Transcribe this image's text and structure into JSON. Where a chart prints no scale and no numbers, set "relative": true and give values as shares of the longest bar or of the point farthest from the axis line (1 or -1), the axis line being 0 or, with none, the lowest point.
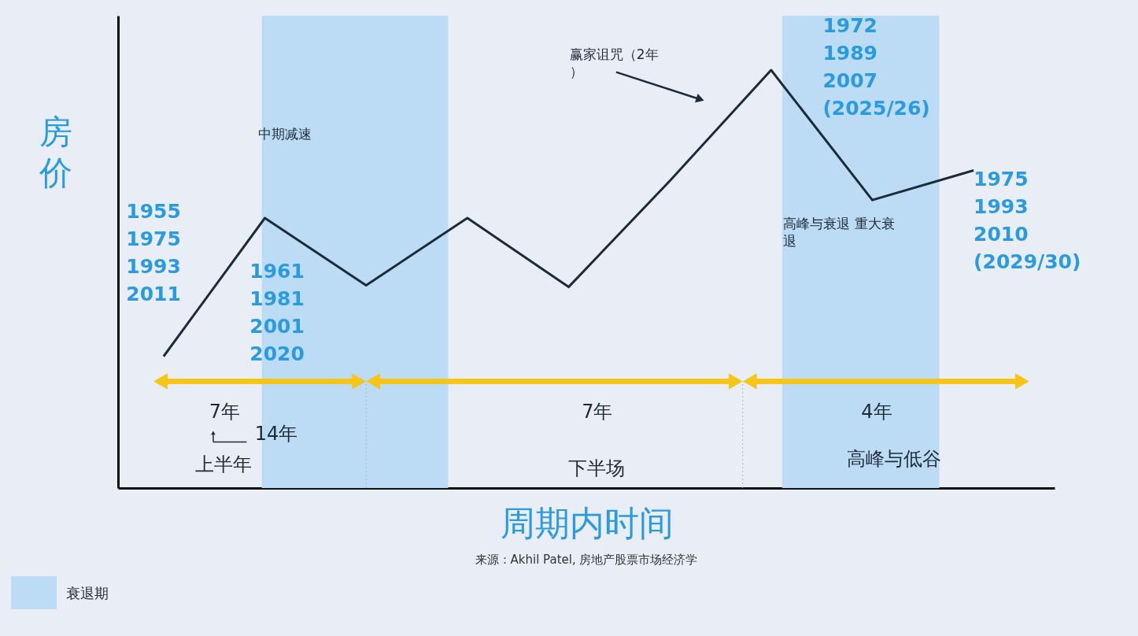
{
  "chart_data": {
    "type": "line",
    "relative": true,
    "xlabel": "周期内时间",
    "ylabel": "房价",
    "categories": [
      null,
      null,
      null,
      null,
      null,
      null,
      null,
      null,
      null
    ],
    "series": [
      {
        "color": "#1c2b3a",
        "values": [
          0.315,
          0.646,
          0.485,
          0.646,
          0.481,
          0.735,
          1,
          0.689,
          0.76
        ]
      }
    ],
    "tick_labels": false,
    "annotations": [
      "1955\n1975\n1993\n2011",
      "1961\n1981\n2001\n2020",
      "1972\n1989\n2007\n(2025/26)",
      "1975\n1993\n2010\n(2029/30)",
      "中期减速",
      "赢家诅咒（2年）",
      "高峰与衰退 重大衰退",
      "7年",
      "7年",
      "4年",
      "14年",
      "上半年",
      "下半场",
      "高峰与低谷",
      "衰退期",
      "来源：Akhil Patel, 房地产股票市场经济学"
    ]
  }
}
